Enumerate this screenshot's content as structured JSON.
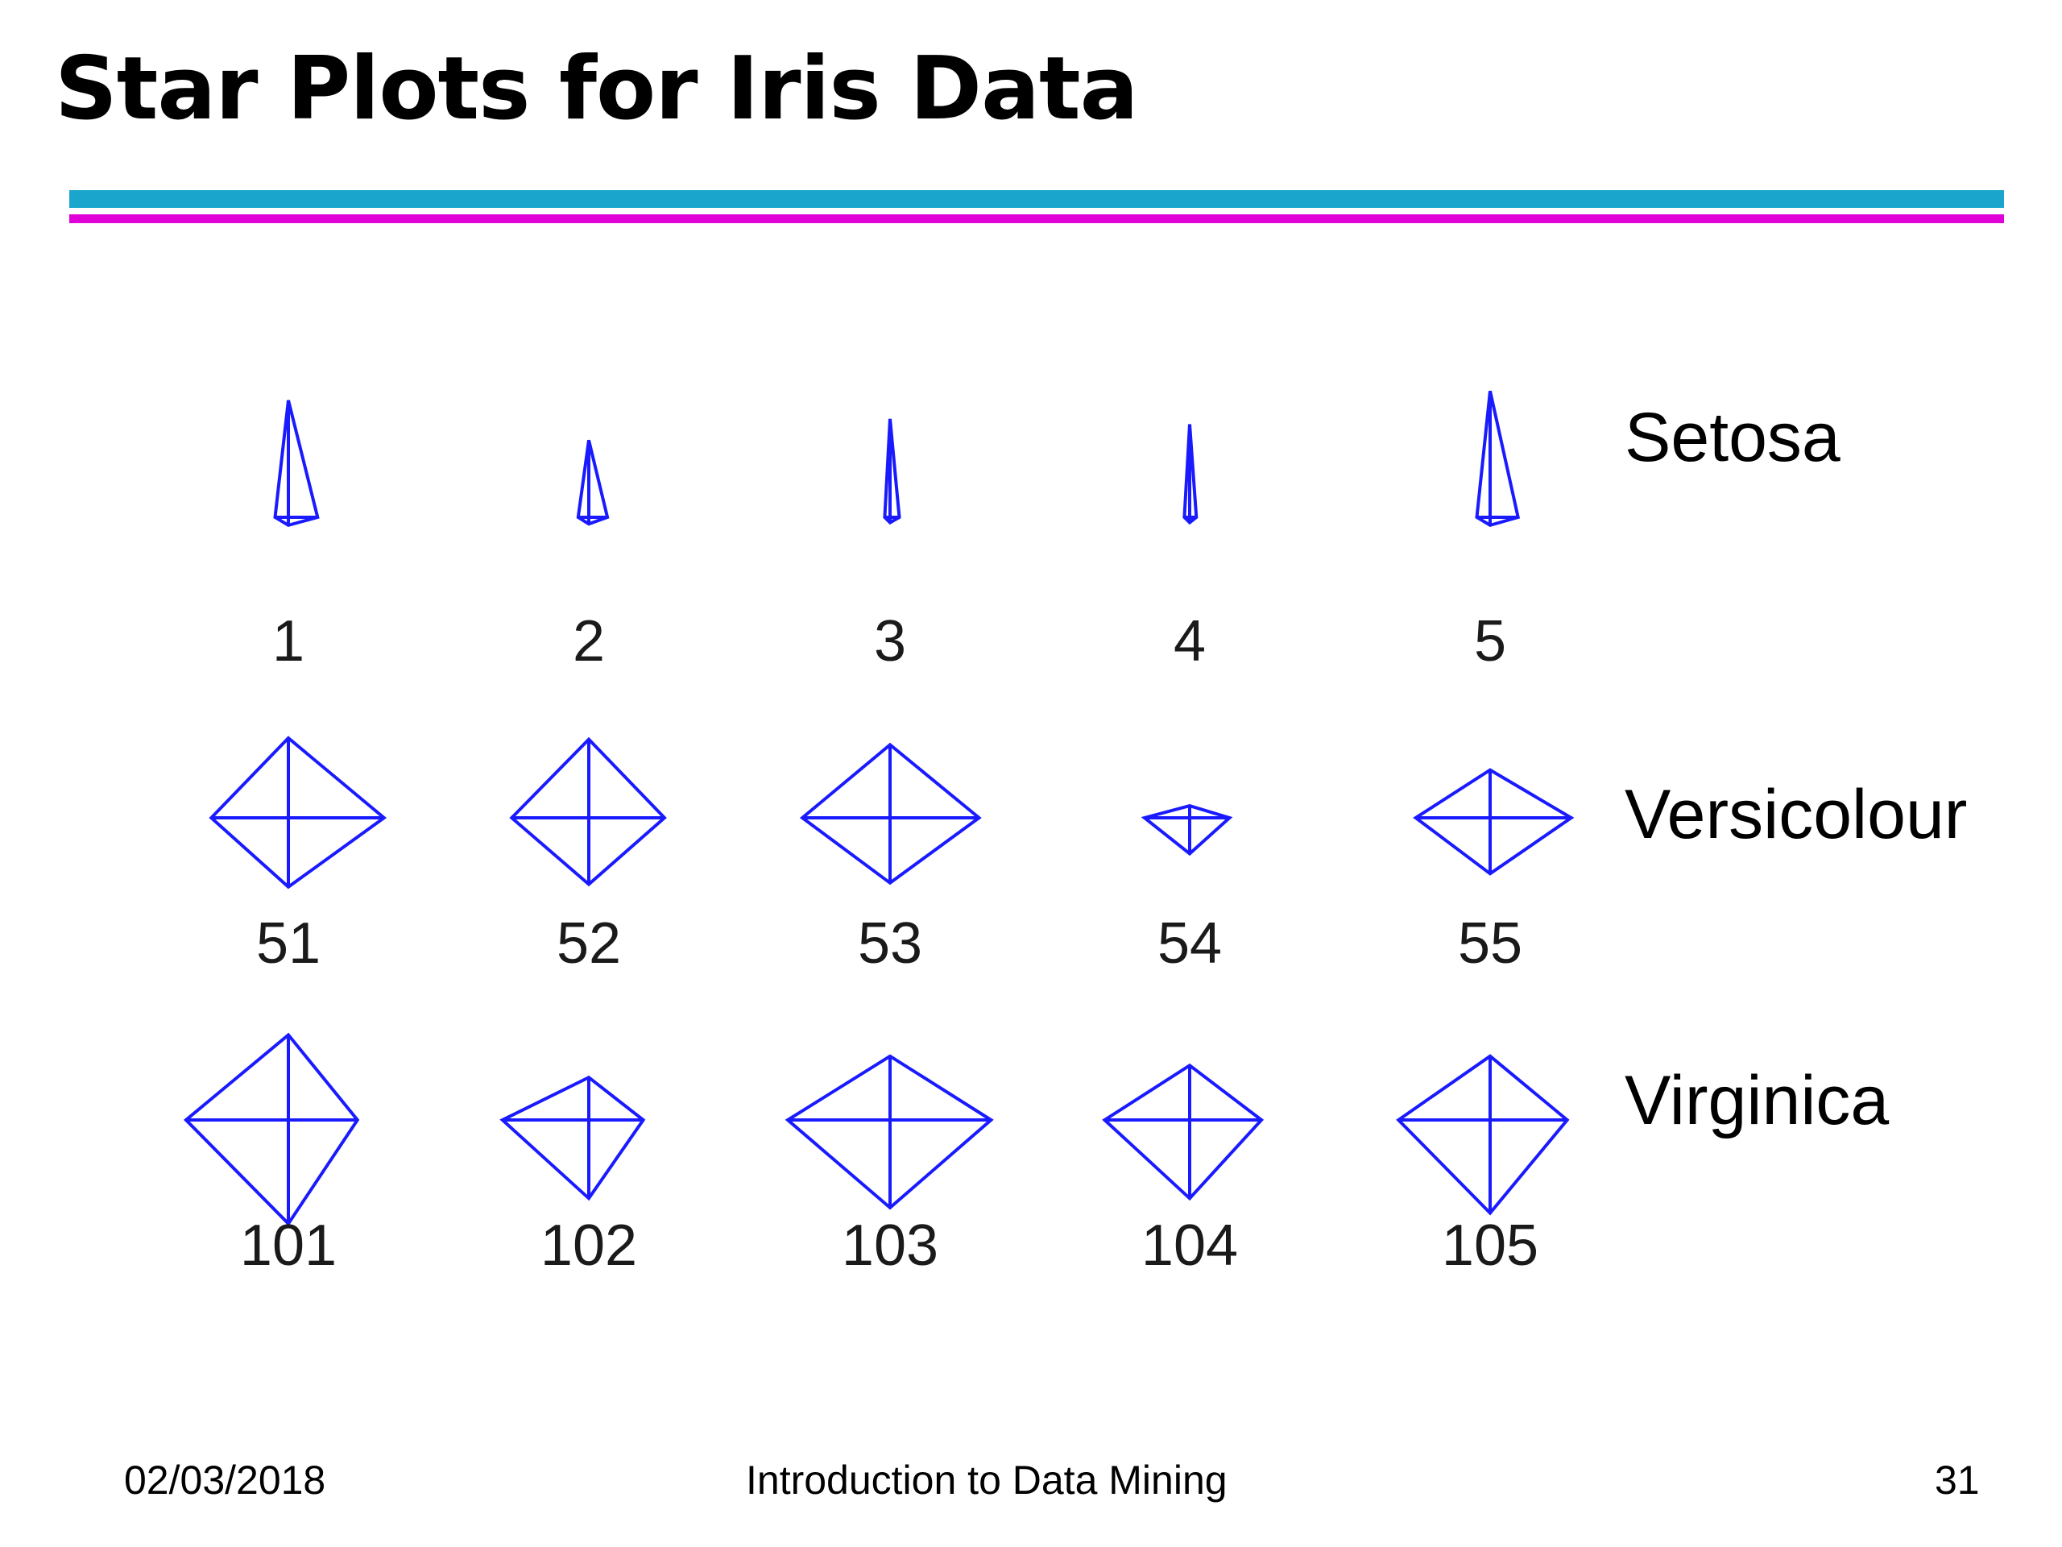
{
  "slide": {
    "title": "Star Plots for Iris Data"
  },
  "footer": {
    "date": "02/03/2018",
    "course": "Introduction to Data Mining",
    "page": "31"
  },
  "chart_data": {
    "type": "star",
    "variables_per_star": 4,
    "line_color": "#1a1aff",
    "rows": [
      {
        "class_label": "Setosa",
        "stars": [
          {
            "label": "1",
            "rays": [
              0.22,
              0.88,
              0.1,
              0.06
            ]
          },
          {
            "label": "2",
            "rays": [
              0.14,
              0.58,
              0.08,
              0.05
            ]
          },
          {
            "label": "3",
            "rays": [
              0.07,
              0.74,
              0.04,
              0.04
            ]
          },
          {
            "label": "4",
            "rays": [
              0.05,
              0.7,
              0.04,
              0.04
            ]
          },
          {
            "label": "5",
            "rays": [
              0.21,
              0.95,
              0.1,
              0.06
            ]
          }
        ]
      },
      {
        "class_label": "Versicolour",
        "stars": [
          {
            "label": "51",
            "rays": [
              0.72,
              0.6,
              0.58,
              0.52
            ]
          },
          {
            "label": "52",
            "rays": [
              0.57,
              0.59,
              0.58,
              0.5
            ]
          },
          {
            "label": "53",
            "rays": [
              0.67,
              0.55,
              0.66,
              0.49
            ]
          },
          {
            "label": "54",
            "rays": [
              0.3,
              0.09,
              0.34,
              0.27
            ]
          },
          {
            "label": "55",
            "rays": [
              0.61,
              0.36,
              0.56,
              0.42
            ]
          }
        ]
      },
      {
        "class_label": "Virginica",
        "stars": [
          {
            "label": "101",
            "rays": [
              0.52,
              0.64,
              0.77,
              0.78
            ]
          },
          {
            "label": "102",
            "rays": [
              0.41,
              0.32,
              0.65,
              0.59
            ]
          },
          {
            "label": "103",
            "rays": [
              0.76,
              0.48,
              0.77,
              0.66
            ]
          },
          {
            "label": "104",
            "rays": [
              0.54,
              0.41,
              0.64,
              0.59
            ]
          },
          {
            "label": "105",
            "rays": [
              0.58,
              0.48,
              0.69,
              0.7
            ]
          }
        ]
      }
    ]
  }
}
